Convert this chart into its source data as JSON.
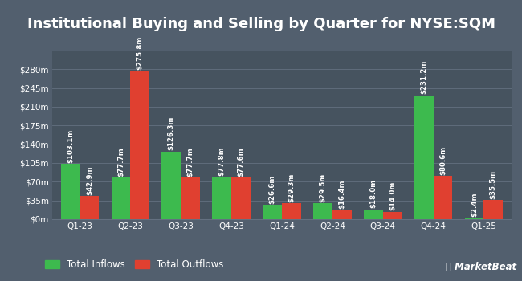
{
  "title": "Institutional Buying and Selling by Quarter for NYSE:SQM",
  "quarters": [
    "Q1-23",
    "Q2-23",
    "Q3-23",
    "Q4-23",
    "Q1-24",
    "Q2-24",
    "Q3-24",
    "Q4-24",
    "Q1-25"
  ],
  "inflows": [
    103.1,
    77.7,
    126.3,
    77.8,
    26.6,
    29.5,
    18.0,
    231.2,
    2.4
  ],
  "outflows": [
    42.9,
    275.8,
    77.7,
    77.6,
    29.3,
    16.4,
    14.0,
    80.6,
    35.5
  ],
  "inflow_labels": [
    "$103.1m",
    "$77.7m",
    "$126.3m",
    "$77.8m",
    "$26.6m",
    "$29.5m",
    "$18.0m",
    "$231.2m",
    "$2.4m"
  ],
  "outflow_labels": [
    "$42.9m",
    "$275.8m",
    "$77.7m",
    "$77.6m",
    "$29.3m",
    "$16.4m",
    "$14.0m",
    "$80.6m",
    "$35.5m"
  ],
  "inflow_color": "#3dba4e",
  "outflow_color": "#e04030",
  "bg_color": "#525f6e",
  "plot_bg_color": "#46535f",
  "grid_color": "#637080",
  "text_color": "#ffffff",
  "bar_width": 0.38,
  "ylim": [
    0,
    315
  ],
  "yticks": [
    0,
    35,
    70,
    105,
    140,
    175,
    210,
    245,
    280
  ],
  "ytick_labels": [
    "$0m",
    "$35m",
    "$70m",
    "$105m",
    "$140m",
    "$175m",
    "$210m",
    "$245m",
    "$280m"
  ],
  "legend_inflow": "Total Inflows",
  "legend_outflow": "Total Outflows",
  "title_fontsize": 13,
  "label_fontsize": 6.2,
  "tick_fontsize": 7.5,
  "legend_fontsize": 8.5
}
